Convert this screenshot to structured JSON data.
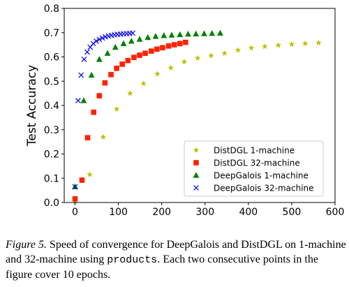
{
  "chart_data": {
    "type": "scatter",
    "xlabel": "",
    "ylabel": "Test Accuracy",
    "xlim": [
      -25,
      600
    ],
    "ylim": [
      0.0,
      0.8
    ],
    "xticks": [
      0,
      100,
      200,
      300,
      400,
      500,
      600
    ],
    "yticks": [
      0.0,
      0.1,
      0.2,
      0.3,
      0.4,
      0.5,
      0.6,
      0.7,
      0.8
    ],
    "xtick_labels": [
      "0",
      "100",
      "200",
      "300",
      "400",
      "500",
      "600"
    ],
    "ytick_labels": [
      "0.0",
      "0.1",
      "0.2",
      "0.3",
      "0.4",
      "0.5",
      "0.6",
      "0.7",
      "0.8"
    ],
    "grid": false,
    "legend_position": "lower-right",
    "series": [
      {
        "name": "DistDGL 1-machine",
        "marker": "star",
        "color": "#bfbf00",
        "x": [
          0,
          34,
          65,
          96,
          127,
          158,
          190,
          221,
          252,
          283,
          314,
          345,
          376,
          407,
          438,
          469,
          500,
          531,
          562
        ],
        "y": [
          0.005,
          0.115,
          0.27,
          0.385,
          0.45,
          0.49,
          0.53,
          0.555,
          0.58,
          0.595,
          0.605,
          0.615,
          0.628,
          0.637,
          0.643,
          0.648,
          0.652,
          0.655,
          0.658
        ]
      },
      {
        "name": "DistDGL 32-machine",
        "marker": "square",
        "color": "#ff2200",
        "x": [
          0,
          16,
          29,
          43,
          56,
          69,
          83,
          96,
          109,
          122,
          136,
          149,
          162,
          176,
          189,
          202,
          216,
          229,
          242,
          255
        ],
        "y": [
          0.015,
          0.092,
          0.267,
          0.372,
          0.44,
          0.493,
          0.527,
          0.553,
          0.57,
          0.585,
          0.598,
          0.607,
          0.615,
          0.624,
          0.632,
          0.638,
          0.645,
          0.65,
          0.655,
          0.66
        ]
      },
      {
        "name": "DeepGalois 1-machine",
        "marker": "triangle",
        "color": "#008000",
        "x": [
          0,
          20,
          38,
          56,
          75,
          93,
          112,
          130,
          149,
          168,
          186,
          205,
          223,
          242,
          261,
          279,
          298,
          316,
          335
        ],
        "y": [
          0.065,
          0.42,
          0.525,
          0.59,
          0.615,
          0.64,
          0.655,
          0.665,
          0.673,
          0.68,
          0.685,
          0.688,
          0.69,
          0.692,
          0.694,
          0.695,
          0.696,
          0.697,
          0.698
        ]
      },
      {
        "name": "DeepGalois 32-machine",
        "marker": "x",
        "color": "#0000ee",
        "x": [
          0,
          7,
          14,
          21,
          28,
          35,
          42,
          49,
          56,
          63,
          70,
          77,
          84,
          91,
          98,
          105,
          112,
          119,
          126,
          133
        ],
        "y": [
          0.065,
          0.42,
          0.525,
          0.59,
          0.62,
          0.64,
          0.655,
          0.665,
          0.672,
          0.678,
          0.683,
          0.686,
          0.689,
          0.691,
          0.693,
          0.694,
          0.695,
          0.696,
          0.697,
          0.698
        ]
      }
    ]
  },
  "caption": {
    "label": "Figure 5.",
    "text_before": " Speed of convergence for DeepGalois and DistDGL on 1-machine and 32-machine using ",
    "dataset": "products",
    "text_after": ". Each two consecutive points in the figure cover 10 epochs."
  }
}
